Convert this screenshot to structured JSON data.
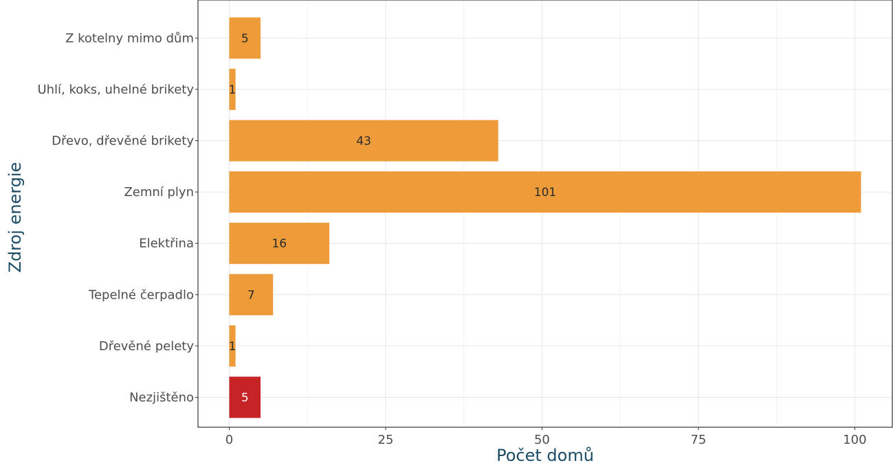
{
  "chart_data": {
    "type": "bar",
    "orientation": "horizontal",
    "categories": [
      "Z kotelny mimo dům",
      "Uhlí, koks, uhelné brikety",
      "Dřevo, dřevěné brikety",
      "Zemní plyn",
      "Elektřina",
      "Tepelné čerpadlo",
      "Dřevěné pelety",
      "Nezjištěno"
    ],
    "values": [
      5,
      1,
      43,
      101,
      16,
      7,
      1,
      5
    ],
    "bar_colors": [
      "#ee9b3a",
      "#ee9b3a",
      "#ee9b3a",
      "#ee9b3a",
      "#ee9b3a",
      "#ee9b3a",
      "#ee9b3a",
      "#c62326"
    ],
    "label_colors": [
      "#2b2b2b",
      "#2b2b2b",
      "#2b2b2b",
      "#2b2b2b",
      "#2b2b2b",
      "#2b2b2b",
      "#2b2b2b",
      "#ffffff"
    ],
    "xlabel": "Počet domů",
    "ylabel": "Zdroj energie",
    "xlim": [
      -5,
      106
    ],
    "xticks": [
      0,
      25,
      50,
      75,
      100
    ],
    "xtick_labels": [
      "0",
      "25",
      "50",
      "75",
      "100"
    ],
    "grid": true,
    "data_labels": true
  }
}
